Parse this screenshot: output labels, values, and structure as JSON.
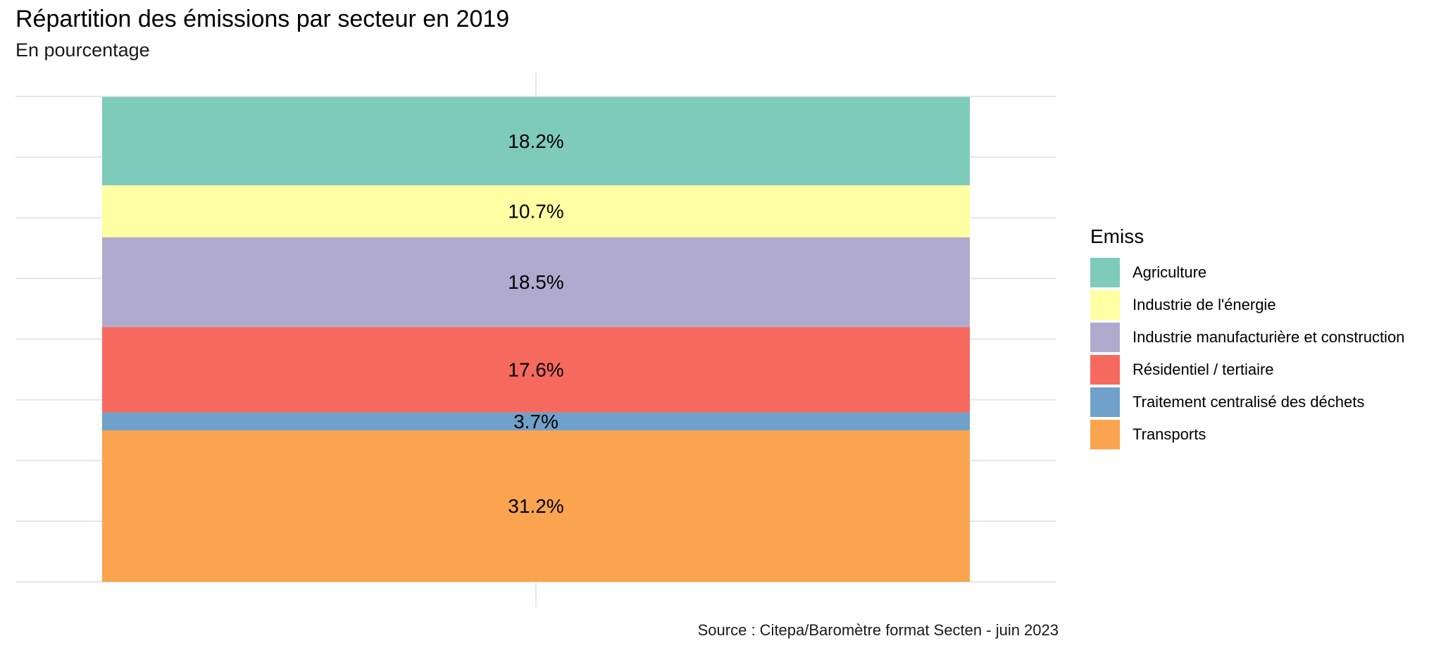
{
  "chart_data": {
    "type": "bar",
    "stacked": true,
    "title": "Répartition des émissions par secteur en 2019",
    "subtitle": "En pourcentage",
    "caption": "Source : Citepa/Baromètre format Secten - juin 2023",
    "legend_title": "Emiss",
    "legend_placement": "right",
    "grid": true,
    "ylim": [
      0,
      100
    ],
    "series": [
      {
        "name": "Agriculture",
        "value": 18.2,
        "label": "18.2%",
        "color": "#7fcbbb"
      },
      {
        "name": "Industrie de l'énergie",
        "value": 10.7,
        "label": "10.7%",
        "color": "#ffffa3"
      },
      {
        "name": "Industrie manufacturière et construction",
        "value": 18.5,
        "label": "18.5%",
        "color": "#b0aacf"
      },
      {
        "name": "Résidentiel / tertiaire",
        "value": 17.6,
        "label": "17.6%",
        "color": "#f6695f"
      },
      {
        "name": "Traitement centralisé des déchets",
        "value": 3.7,
        "label": "3.7%",
        "color": "#70a1cb"
      },
      {
        "name": "Transports",
        "value": 31.2,
        "label": "31.2%",
        "color": "#faa44f"
      }
    ]
  }
}
